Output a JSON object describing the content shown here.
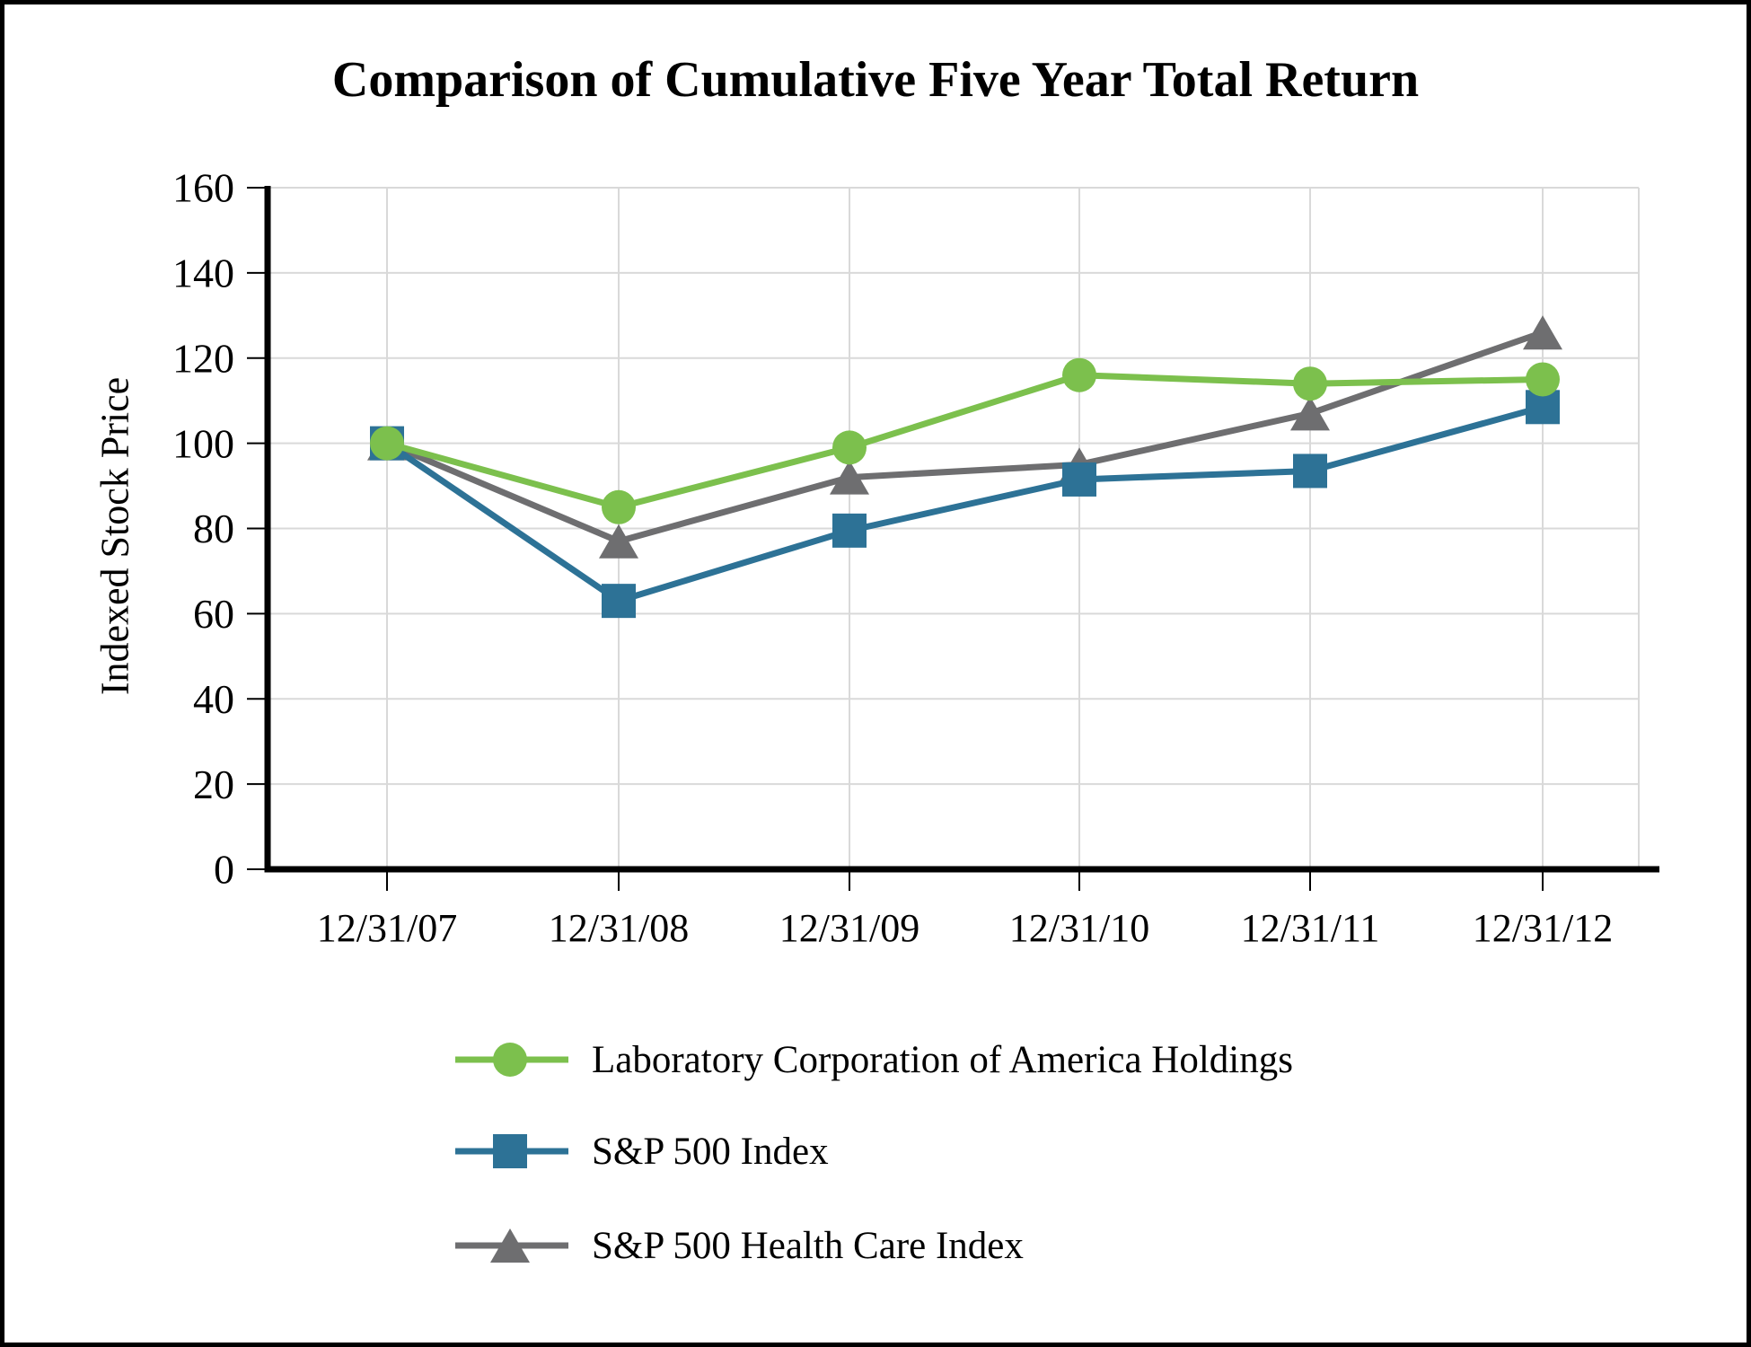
{
  "figure": {
    "title": "Comparison of Cumulative Five Year Total Return"
  },
  "chart_data": {
    "type": "line",
    "title": "Comparison of Cumulative Five Year Total Return",
    "xlabel": "",
    "ylabel": "Indexed Stock Price",
    "x_labels": [
      "12/31/07",
      "12/31/08",
      "12/31/09",
      "12/31/10",
      "12/31/11",
      "12/31/12"
    ],
    "ylim": [
      0,
      160
    ],
    "ytick_interval": 20,
    "ytick_labels": [
      "0",
      "20",
      "40",
      "60",
      "80",
      "100",
      "120",
      "140",
      "160"
    ],
    "grid": true,
    "legend_position": "bottom-left",
    "series": [
      {
        "name": "Laboratory Corporation of America Holdings",
        "marker": "circle",
        "color": "#7CC04D",
        "values": [
          100,
          85,
          99,
          116,
          114,
          115
        ]
      },
      {
        "name": "S&P 500 Index",
        "marker": "square",
        "color": "#2D7296",
        "values": [
          100,
          63,
          79.5,
          91.5,
          93.5,
          108.5
        ]
      },
      {
        "name": "S&P 500 Health Care Index",
        "marker": "triangle",
        "color": "#6E6E70",
        "values": [
          100,
          77,
          92,
          95,
          107,
          126
        ]
      }
    ],
    "colors": {
      "grid": "#D9D9D9",
      "axis": "#000000",
      "text": "#000000",
      "background": "#FFFFFF",
      "frame_border": "#000000"
    }
  }
}
